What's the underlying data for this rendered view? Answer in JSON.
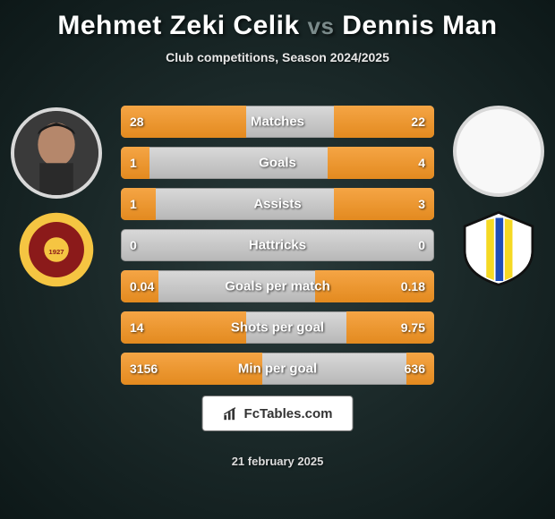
{
  "title": {
    "p1": "Mehmet Zeki Celik",
    "vs": "vs",
    "p2": "Dennis Man"
  },
  "subtitle": "Club competitions, Season 2024/2025",
  "date": "21 february 2025",
  "brand": "FcTables.com",
  "colors": {
    "bar_fill": "#e38a1f",
    "bar_track": "#c8c8c8",
    "bg_center": "#2a3a3a",
    "bg_edge": "#0d1818"
  },
  "player_left": {
    "name": "Mehmet Zeki Celik",
    "club": "AS Roma",
    "club_colors": {
      "outer": "#f5c542",
      "inner": "#8b1a1a",
      "center": "#f5c542"
    }
  },
  "player_right": {
    "name": "Dennis Man",
    "club": "Parma",
    "club_colors": {
      "bg": "#ffffff",
      "stripe1": "#f5d923",
      "stripe2": "#1e4db7",
      "border": "#111"
    }
  },
  "rows": [
    {
      "label": "Matches",
      "l": "28",
      "r": "22",
      "lw": 40,
      "rw": 32
    },
    {
      "label": "Goals",
      "l": "1",
      "r": "4",
      "lw": 9,
      "rw": 34
    },
    {
      "label": "Assists",
      "l": "1",
      "r": "3",
      "lw": 11,
      "rw": 32
    },
    {
      "label": "Hattricks",
      "l": "0",
      "r": "0",
      "lw": 0,
      "rw": 0
    },
    {
      "label": "Goals per match",
      "l": "0.04",
      "r": "0.18",
      "lw": 12,
      "rw": 38
    },
    {
      "label": "Shots per goal",
      "l": "14",
      "r": "9.75",
      "lw": 40,
      "rw": 28
    },
    {
      "label": "Min per goal",
      "l": "3156",
      "r": "636",
      "lw": 45,
      "rw": 9
    }
  ]
}
